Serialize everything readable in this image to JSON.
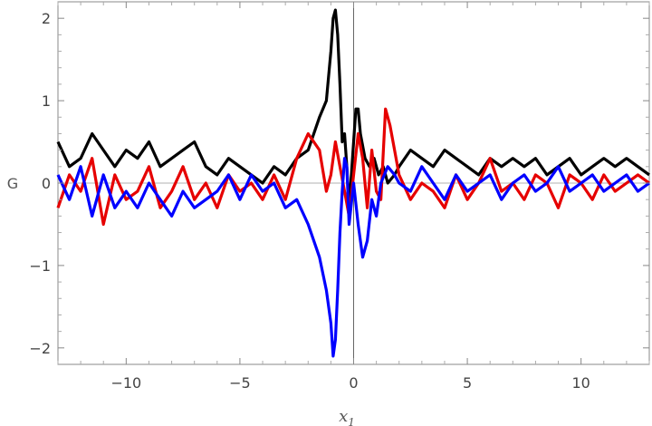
{
  "chart_data": {
    "type": "line",
    "xlabel": "x",
    "xlabel_sub": "1",
    "ylabel": "G",
    "xlim": [
      -13,
      13
    ],
    "ylim": [
      -2.2,
      2.2
    ],
    "x_ticks": [
      -10,
      -5,
      0,
      5,
      10
    ],
    "x_tick_labels": [
      "−10",
      "−5",
      "0",
      "5",
      "10"
    ],
    "y_ticks": [
      -2,
      -1,
      0,
      1,
      2
    ],
    "y_tick_labels": [
      "−2",
      "−1",
      "0",
      "1",
      "2"
    ],
    "grid": false,
    "series": [
      {
        "color": "#000000",
        "x": [
          -13,
          -12.5,
          -12,
          -11.5,
          -11,
          -10.5,
          -10,
          -9.5,
          -9,
          -8.5,
          -8,
          -7.5,
          -7,
          -6.5,
          -6,
          -5.5,
          -5,
          -4.5,
          -4,
          -3.5,
          -3,
          -2.5,
          -2,
          -1.5,
          -1.2,
          -1,
          -0.9,
          -0.8,
          -0.7,
          -0.6,
          -0.5,
          -0.4,
          -0.3,
          -0.2,
          -0.1,
          0,
          0.1,
          0.2,
          0.3,
          0.5,
          0.7,
          0.9,
          1.1,
          1.3,
          1.5,
          1.8,
          2,
          2.5,
          3,
          3.5,
          4,
          4.5,
          5,
          5.5,
          6,
          6.5,
          7,
          7.5,
          8,
          8.5,
          9,
          9.5,
          10,
          10.5,
          11,
          11.5,
          12,
          12.5,
          13
        ],
        "y": [
          0.5,
          0.2,
          0.3,
          0.6,
          0.4,
          0.2,
          0.4,
          0.3,
          0.5,
          0.2,
          0.3,
          0.4,
          0.5,
          0.2,
          0.1,
          0.3,
          0.2,
          0.1,
          0.0,
          0.2,
          0.1,
          0.3,
          0.4,
          0.8,
          1.0,
          1.6,
          2.0,
          2.1,
          1.8,
          1.2,
          0.5,
          0.6,
          0.2,
          -0.3,
          0.1,
          0.5,
          0.9,
          0.9,
          0.6,
          0.3,
          0.2,
          0.3,
          0.1,
          0.2,
          0.0,
          0.1,
          0.2,
          0.4,
          0.3,
          0.2,
          0.4,
          0.3,
          0.2,
          0.1,
          0.3,
          0.2,
          0.3,
          0.2,
          0.3,
          0.1,
          0.2,
          0.3,
          0.1,
          0.2,
          0.3,
          0.2,
          0.3,
          0.2,
          0.1
        ]
      },
      {
        "color": "#e60000",
        "x": [
          -13,
          -12.5,
          -12,
          -11.5,
          -11,
          -10.5,
          -10,
          -9.5,
          -9,
          -8.5,
          -8,
          -7.5,
          -7,
          -6.5,
          -6,
          -5.5,
          -5,
          -4.5,
          -4,
          -3.5,
          -3,
          -2.5,
          -2,
          -1.5,
          -1.2,
          -1,
          -0.8,
          -0.6,
          -0.4,
          -0.2,
          0,
          0.2,
          0.4,
          0.6,
          0.8,
          1,
          1.2,
          1.4,
          1.6,
          1.8,
          2,
          2.5,
          3,
          3.5,
          4,
          4.5,
          5,
          5.5,
          6,
          6.5,
          7,
          7.5,
          8,
          8.5,
          9,
          9.5,
          10,
          10.5,
          11,
          11.5,
          12,
          12.5,
          13
        ],
        "y": [
          -0.3,
          0.1,
          -0.1,
          0.3,
          -0.5,
          0.1,
          -0.2,
          -0.1,
          0.2,
          -0.3,
          -0.1,
          0.2,
          -0.2,
          0.0,
          -0.3,
          0.1,
          -0.1,
          0.0,
          -0.2,
          0.1,
          -0.2,
          0.3,
          0.6,
          0.4,
          -0.1,
          0.1,
          0.5,
          0.2,
          -0.1,
          -0.4,
          0.1,
          0.6,
          0.3,
          -0.3,
          0.4,
          -0.1,
          -0.2,
          0.9,
          0.7,
          0.4,
          0.1,
          -0.2,
          0.0,
          -0.1,
          -0.3,
          0.1,
          -0.2,
          0.0,
          0.3,
          -0.1,
          0.0,
          -0.2,
          0.1,
          0.0,
          -0.3,
          0.1,
          0.0,
          -0.2,
          0.1,
          -0.1,
          0.0,
          0.1,
          0.0
        ]
      },
      {
        "color": "#0000ff",
        "x": [
          -13,
          -12.5,
          -12,
          -11.5,
          -11,
          -10.5,
          -10,
          -9.5,
          -9,
          -8.5,
          -8,
          -7.5,
          -7,
          -6.5,
          -6,
          -5.5,
          -5,
          -4.5,
          -4,
          -3.5,
          -3,
          -2.5,
          -2,
          -1.5,
          -1.2,
          -1,
          -0.9,
          -0.8,
          -0.7,
          -0.6,
          -0.5,
          -0.4,
          -0.3,
          -0.2,
          0,
          0.2,
          0.4,
          0.6,
          0.8,
          1,
          1.2,
          1.5,
          1.8,
          2,
          2.5,
          3,
          3.5,
          4,
          4.5,
          5,
          5.5,
          6,
          6.5,
          7,
          7.5,
          8,
          8.5,
          9,
          9.5,
          10,
          10.5,
          11,
          11.5,
          12,
          12.5,
          13
        ],
        "y": [
          0.1,
          -0.2,
          0.2,
          -0.4,
          0.1,
          -0.3,
          -0.1,
          -0.3,
          0.0,
          -0.2,
          -0.4,
          -0.1,
          -0.3,
          -0.2,
          -0.1,
          0.1,
          -0.2,
          0.1,
          -0.1,
          0.0,
          -0.3,
          -0.2,
          -0.5,
          -0.9,
          -1.3,
          -1.7,
          -2.1,
          -1.9,
          -1.3,
          -0.6,
          -0.1,
          0.3,
          0.2,
          -0.5,
          0.0,
          -0.5,
          -0.9,
          -0.7,
          -0.2,
          -0.4,
          0.0,
          0.2,
          0.1,
          0.0,
          -0.1,
          0.2,
          0.0,
          -0.2,
          0.1,
          -0.1,
          0.0,
          0.1,
          -0.2,
          0.0,
          0.1,
          -0.1,
          0.0,
          0.2,
          -0.1,
          0.0,
          0.1,
          -0.1,
          0.0,
          0.1,
          -0.1,
          0.0
        ]
      }
    ]
  }
}
